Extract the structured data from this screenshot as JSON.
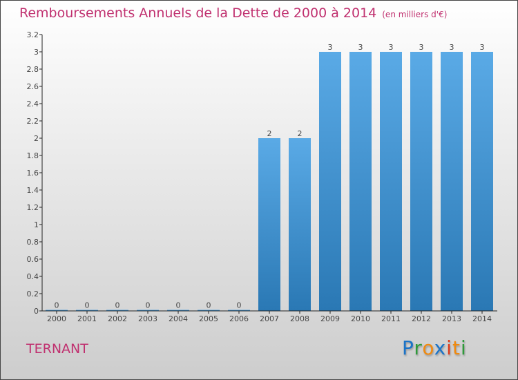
{
  "chart_data": {
    "type": "bar",
    "title": "Remboursements Annuels de la Dette de 2000 à 2014",
    "subtitle": "(en milliers d'€)",
    "categories": [
      "2000",
      "2001",
      "2002",
      "2003",
      "2004",
      "2005",
      "2006",
      "2007",
      "2008",
      "2009",
      "2010",
      "2011",
      "2012",
      "2013",
      "2014"
    ],
    "values": [
      0,
      0,
      0,
      0,
      0,
      0,
      0,
      2,
      2,
      3,
      3,
      3,
      3,
      3,
      3
    ],
    "data_labels": [
      "0",
      "0",
      "0",
      "0",
      "0",
      "0",
      "0",
      "2",
      "2",
      "3",
      "3",
      "3",
      "3",
      "3",
      "3"
    ],
    "ylim": [
      0,
      3.2
    ],
    "yticks": [
      "0",
      "0.2",
      "0.4",
      "0.6",
      "0.8",
      "1",
      "1.2",
      "1.4",
      "1.6",
      "1.8",
      "2",
      "2.2",
      "2.4",
      "2.6",
      "2.8",
      "3",
      "3.2"
    ],
    "xlabel": "",
    "ylabel": "",
    "bar_color_top": "#5aaae6",
    "bar_color_bottom": "#2a78b4"
  },
  "commune": "TERNANT",
  "logo": {
    "text": "Proxiti",
    "letters": [
      "P",
      "r",
      "o",
      "x",
      "i",
      "t",
      "i"
    ],
    "colors": [
      "#1a73c8",
      "#2e9a3a",
      "#f08a10",
      "#1a73c8",
      "#e03a1a",
      "#f08a10",
      "#2e9a3a"
    ]
  }
}
